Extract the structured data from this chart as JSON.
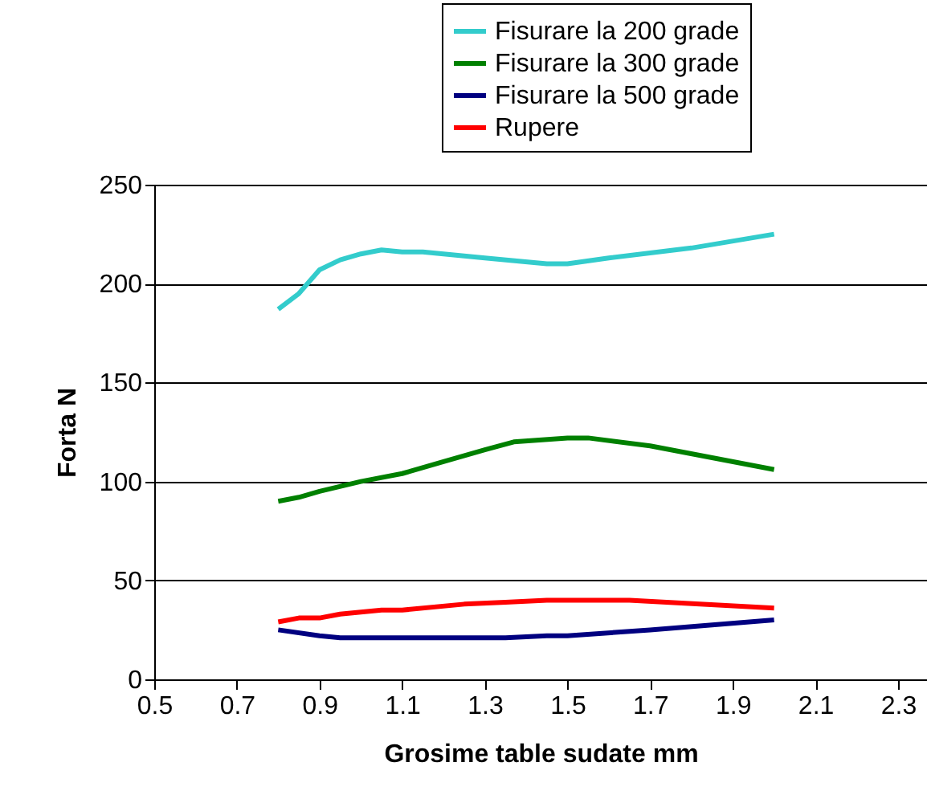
{
  "chart_data": {
    "type": "line",
    "xlabel": "Grosime table sudate mm",
    "ylabel": "Forta N",
    "xlim": [
      0.5,
      2.37
    ],
    "xticks": [
      0.5,
      0.7,
      0.9,
      1.1,
      1.3,
      1.5,
      1.7,
      1.9,
      2.1,
      2.3
    ],
    "ylim": [
      0,
      250
    ],
    "yticks": [
      0,
      50,
      100,
      150,
      200,
      250
    ],
    "grid": "y",
    "legend": "top right",
    "marker": "none",
    "line_style": "solid",
    "series": [
      {
        "name": "Fisurare la 200 grade",
        "color": "#33cccc",
        "x": [
          0.8,
          0.85,
          0.9,
          0.95,
          1.0,
          1.05,
          1.1,
          1.15,
          1.3,
          1.45,
          1.5,
          1.6,
          1.8,
          2.0
        ],
        "values": [
          187,
          195,
          207,
          212,
          215,
          217,
          216,
          216,
          213,
          210,
          210,
          213,
          218,
          225
        ]
      },
      {
        "name": "Fisurare la 300 grade",
        "color": "#008000",
        "x": [
          0.8,
          0.85,
          0.9,
          1.0,
          1.1,
          1.2,
          1.3,
          1.37,
          1.5,
          1.55,
          1.7,
          2.0
        ],
        "values": [
          90,
          92,
          95,
          100,
          104,
          110,
          116,
          120,
          122,
          122,
          118,
          106
        ]
      },
      {
        "name": "Fisurare la 500 grade",
        "color": "#000080",
        "x": [
          0.8,
          0.9,
          0.95,
          1.0,
          1.35,
          1.45,
          1.5,
          1.7,
          2.0
        ],
        "values": [
          25,
          22,
          21,
          21,
          21,
          22,
          22,
          25,
          30
        ]
      },
      {
        "name": "Rupere",
        "color": "#ff0000",
        "x": [
          0.8,
          0.85,
          0.9,
          0.95,
          1.0,
          1.05,
          1.1,
          1.25,
          1.35,
          1.45,
          1.65,
          2.0
        ],
        "values": [
          29,
          31,
          31,
          33,
          34,
          35,
          35,
          38,
          39,
          40,
          40,
          36
        ]
      }
    ]
  }
}
